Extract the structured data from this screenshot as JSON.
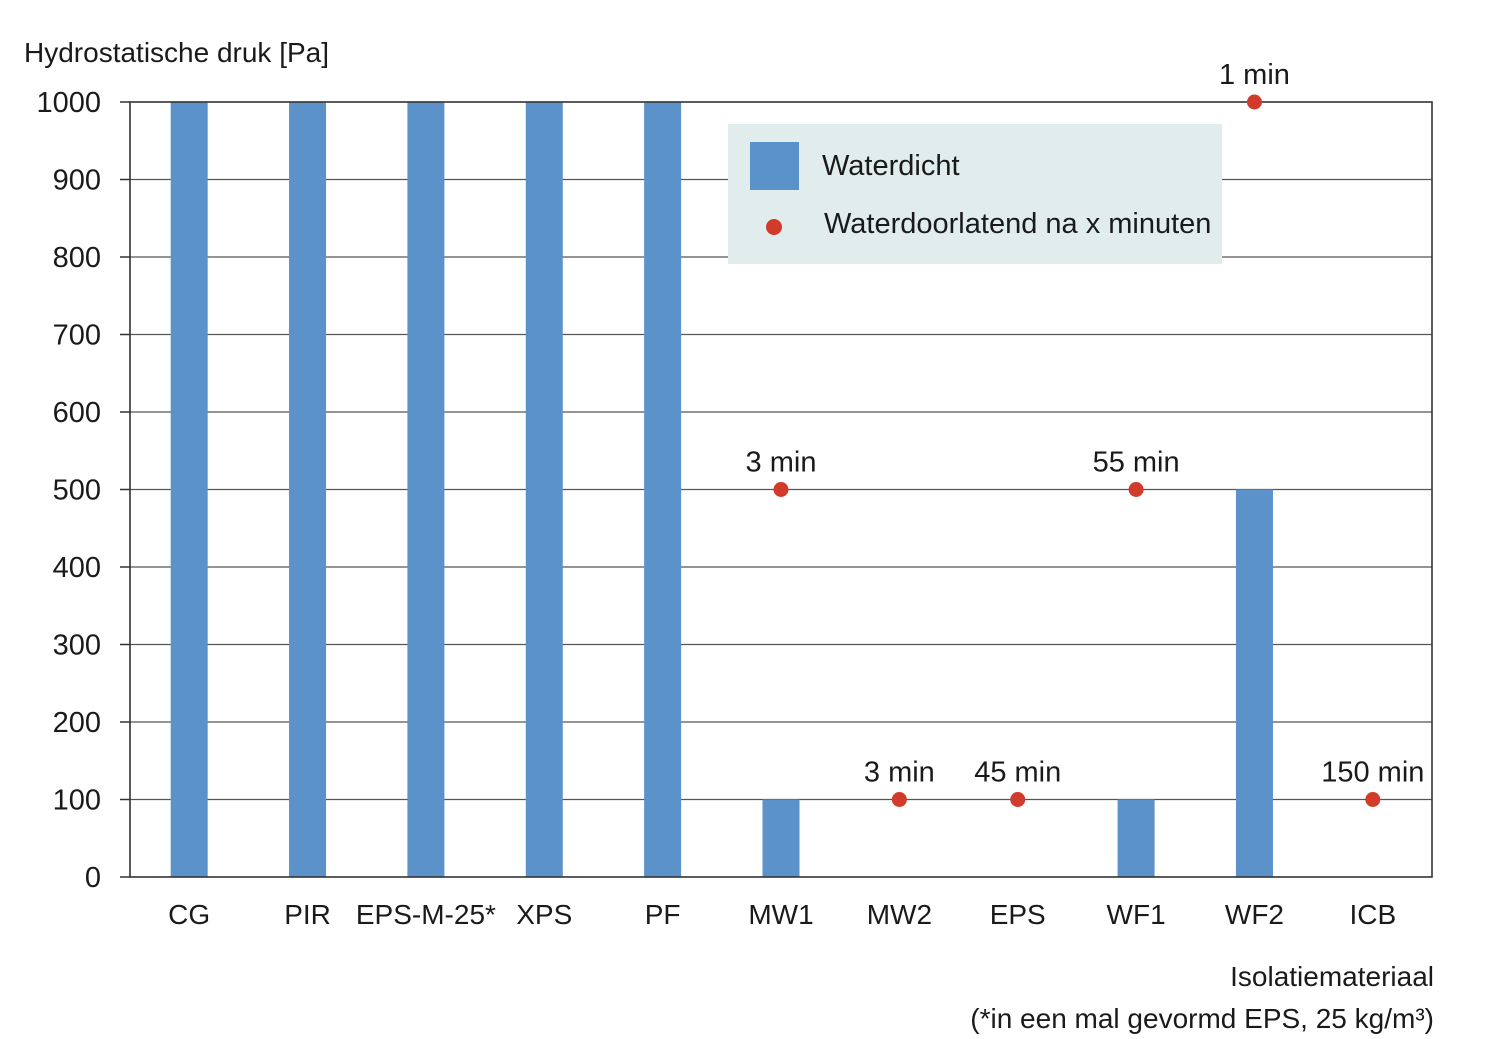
{
  "chart_data": {
    "type": "bar",
    "ylabel": "Hydrostatische druk [Pa]",
    "xlabel": "Isolatiemateriaal",
    "xlabel_note": "(*in een mal gevormd EPS, 25 kg/m³)",
    "ylim": [
      0,
      1000
    ],
    "yticks": [
      "0",
      "100",
      "200",
      "300",
      "400",
      "500",
      "600",
      "700",
      "800",
      "900",
      "1000"
    ],
    "grid": true,
    "categories": [
      "CG",
      "PIR",
      "EPS-M-25*",
      "XPS",
      "PF",
      "MW1",
      "MW2",
      "EPS",
      "WF1",
      "WF2",
      "ICB"
    ],
    "series": [
      {
        "name": "Waterdicht",
        "kind": "bar",
        "values": [
          1000,
          1000,
          1000,
          1000,
          1000,
          100,
          null,
          null,
          100,
          500,
          null
        ]
      },
      {
        "name": "Waterdoorlatend na x minuten",
        "kind": "point",
        "values": [
          null,
          null,
          null,
          null,
          null,
          500,
          100,
          100,
          500,
          1000,
          100
        ],
        "labels": [
          null,
          null,
          null,
          null,
          null,
          "3 min",
          "3 min",
          "45 min",
          "55 min",
          "1 min",
          "150 min"
        ]
      }
    ],
    "legend": {
      "position": "top-right",
      "items": [
        "Waterdicht",
        "Waterdoorlatend na x minuten"
      ]
    }
  },
  "colors": {
    "bar": "#5b92c9",
    "point": "#d23a2c",
    "legend_bg": "#e1ecec",
    "grid": "#555555"
  }
}
